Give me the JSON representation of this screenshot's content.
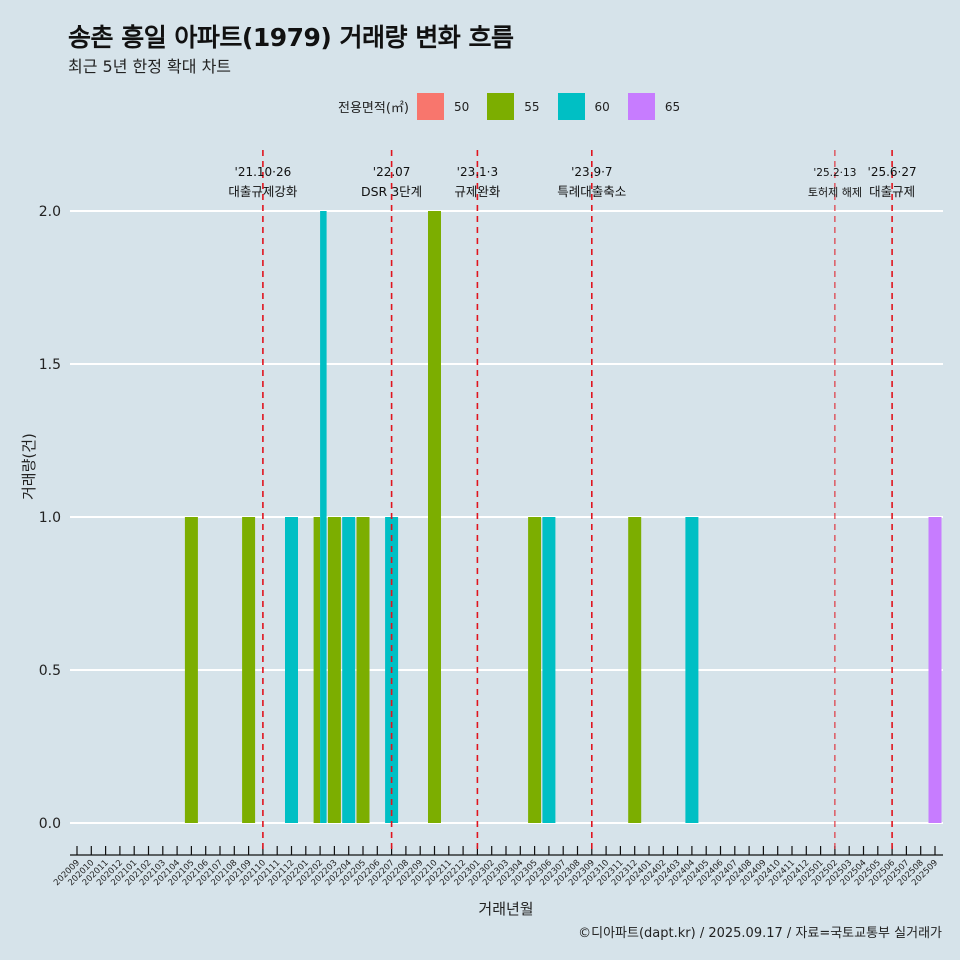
{
  "title": "송촌 흥일 아파트(1979) 거래량 변화 흐름",
  "subtitle": "최근 5년 한정 확대 차트",
  "caption": "©디아파트(dapt.kr) / 2025.09.17 / 자료=국토교통부 실거래가",
  "legend": {
    "title": "전용면적(㎡)",
    "items": [
      {
        "label": "50",
        "color": "#f8766d"
      },
      {
        "label": "55",
        "color": "#7cae00"
      },
      {
        "label": "60",
        "color": "#00bfc4"
      },
      {
        "label": "65",
        "color": "#c77cff"
      }
    ]
  },
  "chart_data": {
    "type": "bar",
    "title": "송촌 흥일 아파트(1979) 거래량 변화 흐름",
    "subtitle": "최근 5년 한정 확대 차트",
    "xlabel": "거래년월",
    "ylabel": "거래량(건)",
    "ylim": [
      0,
      2.0
    ],
    "yticks": [
      "0.0",
      "0.5",
      "1.0",
      "1.5",
      "2.0"
    ],
    "ytick_values": [
      0,
      0.5,
      1.0,
      1.5,
      2.0
    ],
    "grid": true,
    "legend_position": "top",
    "categories": [
      "202009",
      "202010",
      "202011",
      "202012",
      "202101",
      "202102",
      "202103",
      "202104",
      "202105",
      "202106",
      "202107",
      "202108",
      "202109",
      "202110",
      "202111",
      "202112",
      "202201",
      "202202",
      "202203",
      "202204",
      "202205",
      "202206",
      "202207",
      "202208",
      "202209",
      "202210",
      "202211",
      "202212",
      "202301",
      "202302",
      "202303",
      "202304",
      "202305",
      "202306",
      "202307",
      "202308",
      "202309",
      "202310",
      "202311",
      "202312",
      "202401",
      "202402",
      "202403",
      "202404",
      "202405",
      "202406",
      "202407",
      "202408",
      "202409",
      "202410",
      "202411",
      "202412",
      "202501",
      "202502",
      "202503",
      "202504",
      "202505",
      "202506",
      "202507",
      "202508",
      "202509"
    ],
    "bars": [
      {
        "month": "202105",
        "area": "55",
        "value": 1
      },
      {
        "month": "202109",
        "area": "55",
        "value": 1
      },
      {
        "month": "202112",
        "area": "60",
        "value": 1
      },
      {
        "month": "202202",
        "area": "55",
        "value": 1
      },
      {
        "month": "202202",
        "area": "60",
        "value": 2
      },
      {
        "month": "202203",
        "area": "55",
        "value": 1
      },
      {
        "month": "202204",
        "area": "60",
        "value": 1
      },
      {
        "month": "202205",
        "area": "55",
        "value": 1
      },
      {
        "month": "202207",
        "area": "60",
        "value": 1
      },
      {
        "month": "202210",
        "area": "55",
        "value": 2
      },
      {
        "month": "202305",
        "area": "55",
        "value": 1
      },
      {
        "month": "202306",
        "area": "60",
        "value": 1
      },
      {
        "month": "202312",
        "area": "55",
        "value": 1
      },
      {
        "month": "202404",
        "area": "60",
        "value": 1
      },
      {
        "month": "202509",
        "area": "65",
        "value": 1
      }
    ],
    "annotations": [
      {
        "month": "202110",
        "date": "'21.10·26",
        "label": "대출규제강화"
      },
      {
        "month": "202207",
        "date": "'22.07",
        "label": "DSR 3단계"
      },
      {
        "month": "202301",
        "date": "'23.1·3",
        "label": "규제완화"
      },
      {
        "month": "202309",
        "date": "'23.9·7",
        "label": "특례대출축소"
      },
      {
        "month": "202502",
        "date": "'25.2·13",
        "label": "토허제 해제",
        "small": true
      },
      {
        "month": "202506",
        "date": "'25.6·27",
        "label": "대출규제"
      }
    ],
    "reference_line_color": "#e0141e"
  }
}
